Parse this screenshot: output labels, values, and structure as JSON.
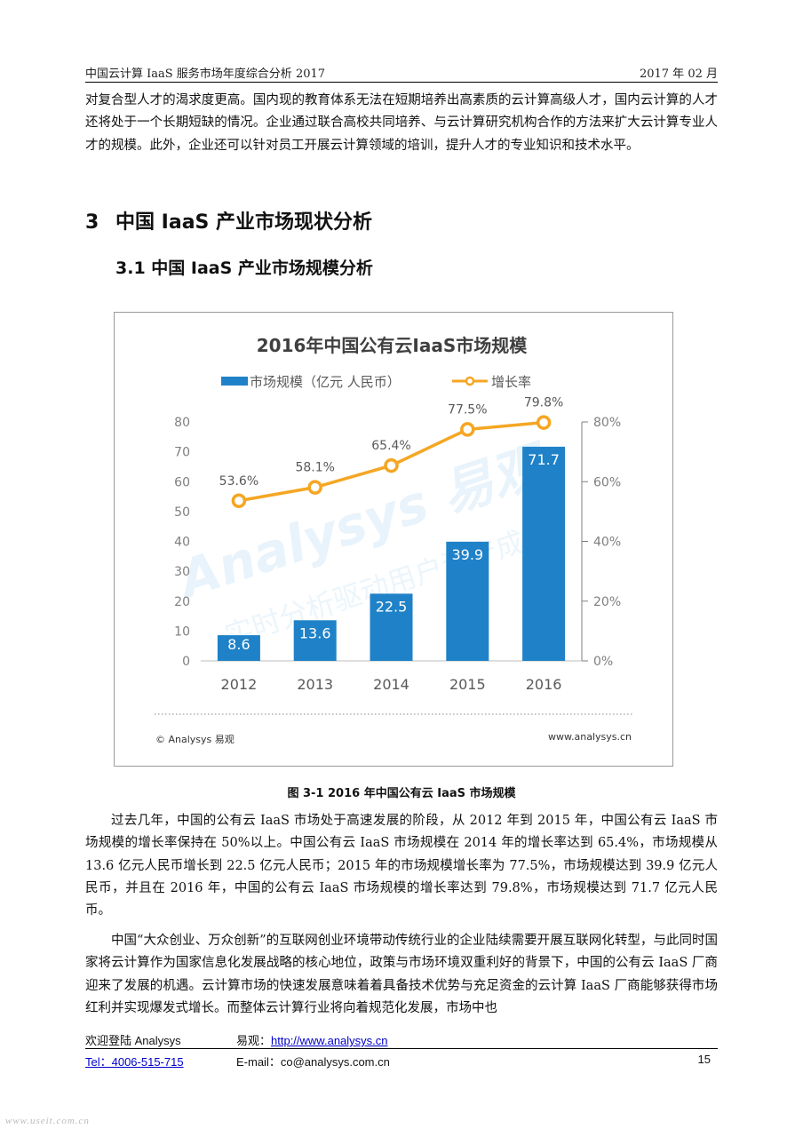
{
  "header": {
    "left": "中国云计算 IaaS 服务市场年度综合分析 2017",
    "right": "2017 年 02 月"
  },
  "intro_paragraph": "对复合型人才的渴求度更高。国内现的教育体系无法在短期培养出高素质的云计算高级人才，国内云计算的人才还将处于一个长期短缺的情况。企业通过联合高校共同培养、与云计算研究机构合作的方法来扩大云计算专业人才的规模。此外，企业还可以针对员工开展云计算领域的培训，提升人才的专业知识和技术水平。",
  "section": {
    "number": "3",
    "title": "中国 IaaS 产业市场现状分析"
  },
  "subsection": {
    "title": "3.1 中国 IaaS 产业市场规模分析"
  },
  "chart_data": {
    "type": "bar",
    "title": "2016年中国公有云IaaS市场规模",
    "categories": [
      "2012",
      "2013",
      "2014",
      "2015",
      "2016"
    ],
    "series": [
      {
        "name": "市场规模（亿元 人民币）",
        "type": "bar",
        "axis": "left",
        "values": [
          8.6,
          13.6,
          22.5,
          39.9,
          71.7
        ],
        "labels": [
          "8.6",
          "13.6",
          "22.5",
          "39.9",
          "71.7"
        ],
        "color": "#1f82c8"
      },
      {
        "name": "增长率",
        "type": "line",
        "axis": "right",
        "values": [
          53.6,
          58.1,
          65.4,
          77.5,
          79.8
        ],
        "labels": [
          "53.6%",
          "58.1%",
          "65.4%",
          "77.5%",
          "79.8%"
        ],
        "color": "#f5a623"
      }
    ],
    "ylim": [
      0,
      80
    ],
    "yticks": [
      "0",
      "10",
      "20",
      "30",
      "40",
      "50",
      "60",
      "70",
      "80"
    ],
    "y2lim": [
      0,
      80
    ],
    "y2ticks": [
      "0%",
      "20%",
      "40%",
      "60%",
      "80%"
    ],
    "legend_position": "top",
    "grid": false,
    "source": "© Analysys 易观",
    "website": "www.analysys.cn",
    "watermark": "Analysys 易观 实时分析驱动用户资产成长"
  },
  "figure_caption": "图 3-1 2016 年中国公有云 IaaS 市场规模",
  "body_paragraphs": [
    "过去几年，中国的公有云 IaaS 市场处于高速发展的阶段，从 2012 年到 2015 年，中国公有云 IaaS 市场规模的增长率保持在 50%以上。中国公有云 IaaS 市场规模在 2014 年的增长率达到 65.4%，市场规模从 13.6 亿元人民币增长到 22.5 亿元人民币；2015 年的市场规模增长率为 77.5%，市场规模达到 39.9 亿元人民币，并且在 2016 年，中国的公有云 IaaS 市场规模的增长率达到 79.8%，市场规模达到 71.7 亿元人民币。",
    "中国“大众创业、万众创新”的互联网创业环境带动传统行业的企业陆续需要开展互联网化转型，与此同时国家将云计算作为国家信息化发展战略的核心地位，政策与市场环境双重利好的背景下，中国的公有云 IaaS 厂商迎来了发展的机遇。云计算市场的快速发展意味着着具备技术优势与充足资金的云计算 IaaS 厂商能够获得市场红利并实现爆发式增长。而整体云计算行业将向着规范化发展，市场中也"
  ],
  "footer": {
    "welcome": "欢迎登陆 Analysys",
    "tel": "Tel：4006-515-715",
    "yiguan_label": "易观：",
    "yiguan_url": "http://www.analysys.cn",
    "email": "E-mail：co@analysys.com.cn",
    "page_number": "15"
  },
  "page_watermark": "www.useit.com.cn"
}
